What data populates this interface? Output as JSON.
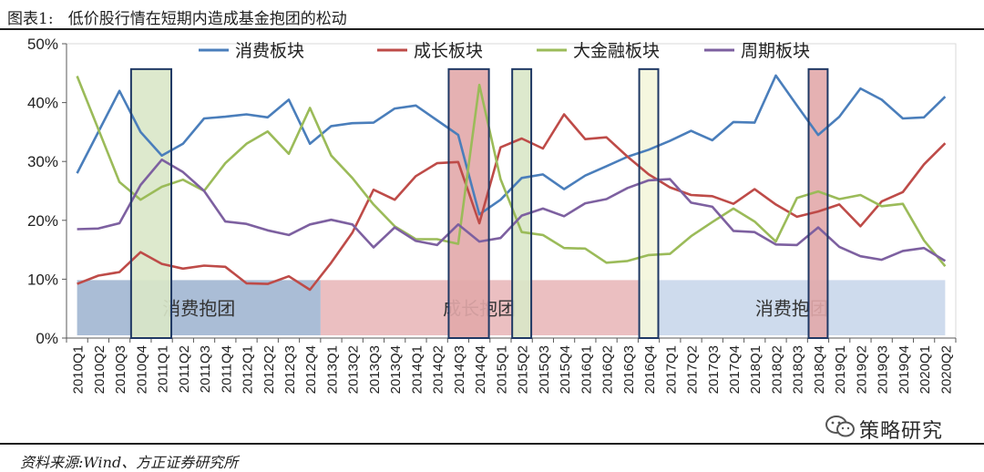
{
  "header": {
    "title": "图表1:   低价股行情在短期内造成基金抱团的松动"
  },
  "footer": {
    "source": "资料来源:Wind、方正证券研究所"
  },
  "watermark": {
    "text": "策略研究",
    "icon": "wechat-icon"
  },
  "chart_data": {
    "type": "line",
    "categories": [
      "2010Q1",
      "2010Q2",
      "2010Q3",
      "2010Q4",
      "2011Q1",
      "2011Q2",
      "2011Q3",
      "2011Q4",
      "2012Q1",
      "2012Q2",
      "2012Q3",
      "2012Q4",
      "2013Q1",
      "2013Q2",
      "2013Q3",
      "2013Q4",
      "2014Q1",
      "2014Q2",
      "2014Q3",
      "2014Q4",
      "2015Q1",
      "2015Q2",
      "2015Q3",
      "2015Q4",
      "2016Q1",
      "2016Q2",
      "2016Q3",
      "2016Q4",
      "2017Q1",
      "2017Q2",
      "2017Q3",
      "2017Q4",
      "2018Q1",
      "2018Q2",
      "2018Q3",
      "2018Q4",
      "2019Q1",
      "2019Q2",
      "2019Q3",
      "2019Q4",
      "2020Q1",
      "2020Q2"
    ],
    "ylim": [
      0,
      50
    ],
    "yticks": [
      "0%",
      "10%",
      "20%",
      "30%",
      "40%",
      "50%"
    ],
    "grid": false,
    "legend": "top",
    "series": [
      {
        "name": "消费板块",
        "color": "#4a7ebb",
        "values": [
          28,
          35,
          42,
          35,
          31,
          33,
          37.3,
          37.6,
          38,
          37.5,
          40.5,
          33,
          36,
          36.5,
          36.6,
          39,
          39.5,
          37,
          34.5,
          21,
          23.5,
          27.2,
          27.8,
          25.3,
          27.6,
          29.2,
          30.8,
          32,
          33.5,
          35.2,
          33.6,
          36.7,
          36.6,
          44.6,
          39.5,
          34.5,
          37.6,
          42.4,
          40.5,
          37.3,
          37.5,
          41
        ]
      },
      {
        "name": "成长板块",
        "color": "#be4b48",
        "values": [
          9.2,
          10.6,
          11.2,
          14.6,
          12.6,
          11.8,
          12.3,
          12.1,
          9.3,
          9.2,
          10.5,
          8.2,
          12.8,
          17.9,
          25.2,
          23.5,
          27.5,
          29.7,
          29.9,
          19.5,
          32.4,
          33.9,
          32.2,
          38,
          33.8,
          34.1,
          30.8,
          27.8,
          25.6,
          24.3,
          24.1,
          22.8,
          25.3,
          22.7,
          20.6,
          21.5,
          22.7,
          19,
          23.2,
          24.8,
          29.5,
          33.1
        ]
      },
      {
        "name": "大金融板块",
        "color": "#9bbb59",
        "values": [
          44.5,
          35.5,
          26.5,
          23.5,
          25.7,
          26.9,
          25,
          29.7,
          33,
          35.1,
          31.3,
          39.1,
          31,
          27.2,
          22.7,
          19,
          16.8,
          16.8,
          16,
          43,
          27,
          18,
          17.5,
          15.3,
          15.2,
          12.8,
          13.1,
          14.1,
          14.3,
          17.3,
          19.7,
          22,
          19.8,
          16.4,
          23.8,
          24.9,
          23.6,
          24.3,
          22.4,
          22.8,
          16.6,
          12.2
        ]
      },
      {
        "name": "周期板块",
        "color": "#7d60a0",
        "values": [
          18.5,
          18.6,
          19.5,
          26,
          30.3,
          28.2,
          25,
          19.8,
          19.4,
          18.3,
          17.5,
          19.3,
          20.1,
          19.3,
          15.4,
          18.8,
          16.5,
          15.8,
          19.3,
          16.4,
          17,
          20.8,
          22,
          20.7,
          22.9,
          23.6,
          25.5,
          26.8,
          27,
          23,
          22.3,
          18.2,
          18,
          15.9,
          15.8,
          18.8,
          15.5,
          13.9,
          13.3,
          14.8,
          15.3,
          13.1
        ]
      }
    ],
    "bands": [
      {
        "label": "消费抱团",
        "from": 0,
        "to": 11.5,
        "color": "#9bb2cf"
      },
      {
        "label": "成长抱团",
        "from": 11.5,
        "to": 26.5,
        "color": "#e8b4b6"
      },
      {
        "label": "消费抱团",
        "from": 26.5,
        "to": 41,
        "color": "#c5d5ea"
      }
    ],
    "highlights": [
      {
        "start": 3,
        "end": 4,
        "color": "#d9e7c8"
      },
      {
        "start": 18,
        "end": 19,
        "color": "#e2a8aa"
      },
      {
        "start": 21,
        "end": 21,
        "color": "#d9e7c8"
      },
      {
        "start": 27,
        "end": 27,
        "color": "#f4f6dc"
      },
      {
        "start": 35,
        "end": 35,
        "color": "#e2a8aa"
      }
    ]
  }
}
